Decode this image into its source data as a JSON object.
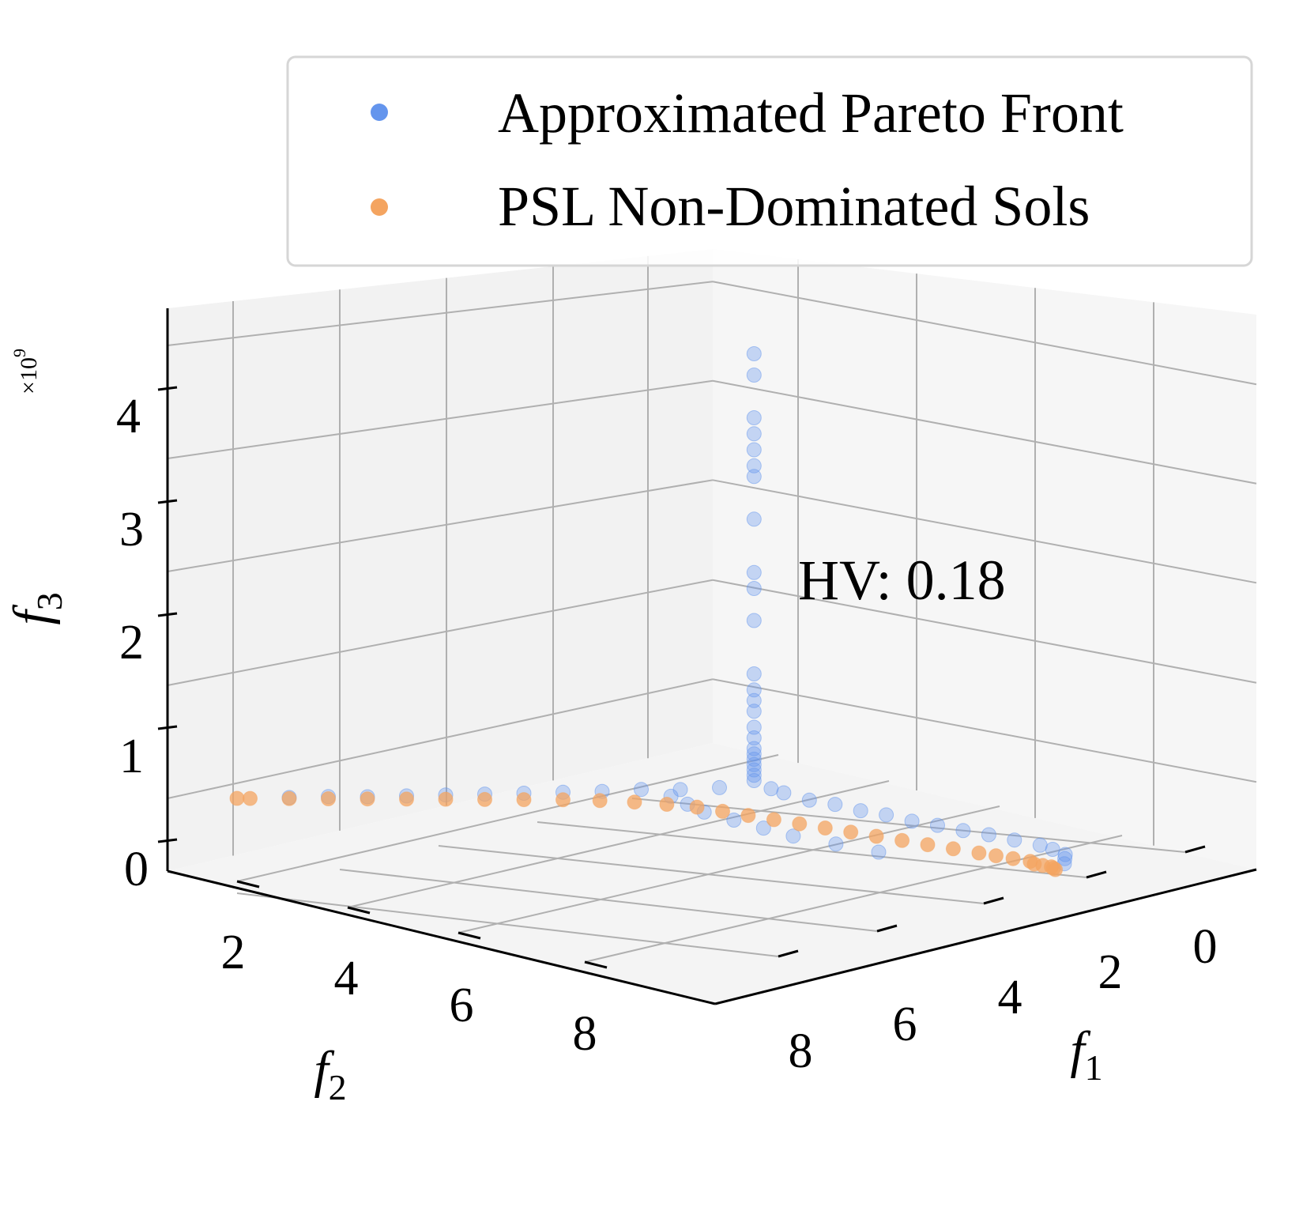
{
  "chart_data": {
    "type": "scatter",
    "projection": "3d",
    "legend": {
      "placement": "top-right",
      "entries": [
        {
          "label": "Approximated Pareto Front",
          "color": "#6495ED"
        },
        {
          "label": "PSL Non-Dominated Sols",
          "color": "#F4A460"
        }
      ]
    },
    "annotation": "HV: 0.18",
    "axes": {
      "x": {
        "label": "f1",
        "label_base": "f",
        "label_sub": "1",
        "ticks": [
          "0",
          "2",
          "4",
          "6",
          "8"
        ],
        "range": [
          -1,
          9
        ]
      },
      "y": {
        "label": "f2",
        "label_base": "f",
        "label_sub": "2",
        "ticks": [
          "2",
          "4",
          "6",
          "8"
        ],
        "range": [
          1,
          9
        ]
      },
      "z": {
        "label": "f3",
        "label_base": "f",
        "label_sub": "3",
        "ticks": [
          "0",
          "1",
          "2",
          "3",
          "4"
        ],
        "range": [
          0,
          4.5
        ],
        "multiplier": "×10",
        "multiplier_exp": "9"
      }
    },
    "grid": true,
    "series": [
      {
        "name": "Approximated Pareto Front",
        "color": "#6495ED",
        "points": [
          [
            0.1,
            5.0,
            4.2
          ],
          [
            0.1,
            5.0,
            4.0
          ],
          [
            0.1,
            5.0,
            3.6
          ],
          [
            0.1,
            5.0,
            3.45
          ],
          [
            0.1,
            5.0,
            3.3
          ],
          [
            0.1,
            5.0,
            3.15
          ],
          [
            0.1,
            5.0,
            3.05
          ],
          [
            0.1,
            5.0,
            2.65
          ],
          [
            0.1,
            5.0,
            2.15
          ],
          [
            0.1,
            5.0,
            2.0
          ],
          [
            0.1,
            5.0,
            1.7
          ],
          [
            0.1,
            5.0,
            1.2
          ],
          [
            0.1,
            5.0,
            1.05
          ],
          [
            0.1,
            5.0,
            0.95
          ],
          [
            0.1,
            5.0,
            0.85
          ],
          [
            0.1,
            5.0,
            0.7
          ],
          [
            0.1,
            5.0,
            0.6
          ],
          [
            0.1,
            5.0,
            0.5
          ],
          [
            0.1,
            5.0,
            0.45
          ],
          [
            0.1,
            5.0,
            0.4
          ],
          [
            0.1,
            5.0,
            0.35
          ],
          [
            0.1,
            5.0,
            0.3
          ],
          [
            0.1,
            5.0,
            0.25
          ],
          [
            0.1,
            5.0,
            0.2
          ],
          [
            0.3,
            4.8,
            0.15
          ],
          [
            0.6,
            4.6,
            0.15
          ],
          [
            0.9,
            4.3,
            0.12
          ],
          [
            1.2,
            4.0,
            0.12
          ],
          [
            1.5,
            3.7,
            0.1
          ],
          [
            1.8,
            3.4,
            0.1
          ],
          [
            2.1,
            3.1,
            0.08
          ],
          [
            2.4,
            2.8,
            0.08
          ],
          [
            2.7,
            2.5,
            0.07
          ],
          [
            3.0,
            2.2,
            0.07
          ],
          [
            3.3,
            1.9,
            0.06
          ],
          [
            3.6,
            1.6,
            0.05
          ],
          [
            3.9,
            1.4,
            0.05
          ],
          [
            4.2,
            1.2,
            0.04
          ],
          [
            4.5,
            1.1,
            0.04
          ],
          [
            4.8,
            1.0,
            0.03
          ],
          [
            0.0,
            5.3,
            0.12
          ],
          [
            0.0,
            5.6,
            0.1
          ],
          [
            0.0,
            5.9,
            0.1
          ],
          [
            0.0,
            6.2,
            0.08
          ],
          [
            0.0,
            6.5,
            0.07
          ],
          [
            0.0,
            6.8,
            0.06
          ],
          [
            0.0,
            7.1,
            0.05
          ],
          [
            0.0,
            7.4,
            0.04
          ],
          [
            0.0,
            7.7,
            0.03
          ],
          [
            0.0,
            8.0,
            0.02
          ],
          [
            0.0,
            8.3,
            0.02
          ],
          [
            0.0,
            8.6,
            0.01
          ],
          [
            0.5,
            5.5,
            0.1
          ],
          [
            1.0,
            5.2,
            0.09
          ],
          [
            1.5,
            4.9,
            0.08
          ],
          [
            2.0,
            4.5,
            0.07
          ],
          [
            2.5,
            4.1,
            0.06
          ],
          [
            3.0,
            3.7,
            0.05
          ],
          [
            3.5,
            3.2,
            0.04
          ],
          [
            4.0,
            2.7,
            0.03
          ]
        ]
      },
      {
        "name": "PSL Non-Dominated Sols",
        "color": "#F4A460",
        "points": [
          [
            5.0,
            1.0,
            0.0
          ],
          [
            4.9,
            1.05,
            0.0
          ],
          [
            4.8,
            1.1,
            0.0
          ],
          [
            4.7,
            1.2,
            0.0
          ],
          [
            4.6,
            1.3,
            0.0
          ],
          [
            4.4,
            1.4,
            0.0
          ],
          [
            4.2,
            1.6,
            0.0
          ],
          [
            4.0,
            1.8,
            0.0
          ],
          [
            3.8,
            2.0,
            0.0
          ],
          [
            3.5,
            2.3,
            0.0
          ],
          [
            3.2,
            2.6,
            0.0
          ],
          [
            2.9,
            2.9,
            0.0
          ],
          [
            2.6,
            3.2,
            0.0
          ],
          [
            2.3,
            3.5,
            0.0
          ],
          [
            2.0,
            3.8,
            0.0
          ],
          [
            1.7,
            4.1,
            0.0
          ],
          [
            1.4,
            4.4,
            0.0
          ],
          [
            1.1,
            4.7,
            0.0
          ],
          [
            0.8,
            5.0,
            0.0
          ],
          [
            0.5,
            5.3,
            0.0
          ],
          [
            0.3,
            5.6,
            0.0
          ],
          [
            0.15,
            5.9,
            0.0
          ],
          [
            0.05,
            6.2,
            0.0
          ],
          [
            0.0,
            6.5,
            0.0
          ],
          [
            0.0,
            6.8,
            0.0
          ],
          [
            0.0,
            7.1,
            0.0
          ],
          [
            0.0,
            7.4,
            0.0
          ],
          [
            0.0,
            7.7,
            0.0
          ],
          [
            0.0,
            8.0,
            0.0
          ],
          [
            0.0,
            8.3,
            0.0
          ],
          [
            0.0,
            8.6,
            0.0
          ],
          [
            0.0,
            8.9,
            0.0
          ],
          [
            0.0,
            9.0,
            0.0
          ]
        ]
      }
    ]
  }
}
